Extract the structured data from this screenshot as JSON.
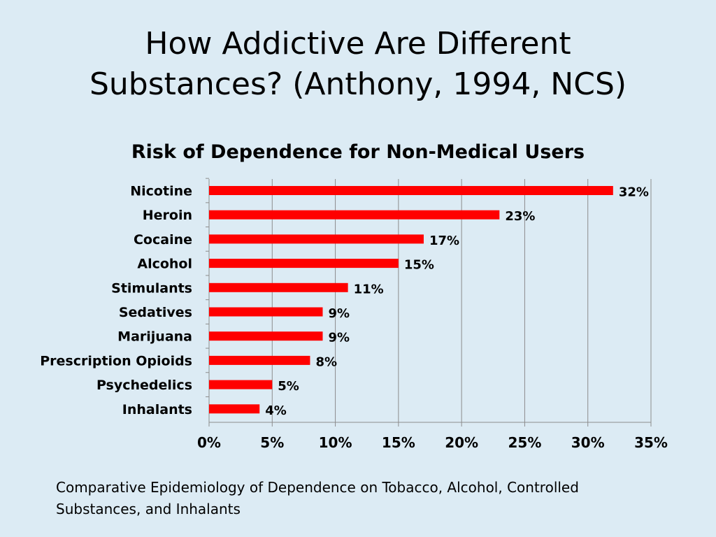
{
  "slide": {
    "title_line1": "How Addictive Are Different",
    "title_line2": "Substances? (Anthony, 1994, NCS)",
    "footnote_line1": "Comparative Epidemiology of Dependence on Tobacco, Alcohol, Controlled",
    "footnote_line2": "Substances, and Inhalants"
  },
  "colors": {
    "background": "#dcebf4",
    "bar": "#ff0000",
    "gridline": "#8c8c8c"
  },
  "chart_data": {
    "type": "bar",
    "orientation": "horizontal",
    "title": "Risk of Dependence for Non-Medical Users",
    "categories": [
      "Nicotine",
      "Heroin",
      "Cocaine",
      "Alcohol",
      "Stimulants",
      "Sedatives",
      "Marijuana",
      "Prescription Opioids",
      "Psychedelics",
      "Inhalants"
    ],
    "values": [
      32,
      23,
      17,
      15,
      11,
      9,
      9,
      8,
      5,
      4
    ],
    "value_labels": [
      "32%",
      "23%",
      "17%",
      "15%",
      "11%",
      "9%",
      "9%",
      "8%",
      "5%",
      "4%"
    ],
    "xlim": [
      0,
      35
    ],
    "xticks": [
      0,
      5,
      10,
      15,
      20,
      25,
      30,
      35
    ],
    "xtick_labels": [
      "0%",
      "5%",
      "10%",
      "15%",
      "20%",
      "25%",
      "30%",
      "35%"
    ],
    "grid": true,
    "legend": "none"
  }
}
